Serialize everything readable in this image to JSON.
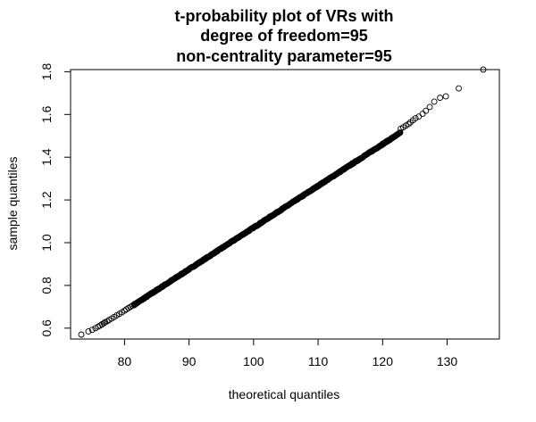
{
  "chart_data": {
    "type": "scatter",
    "title_lines": [
      "t-probability plot of VRs with",
      "degree of freedom=95",
      "non-centrality parameter=95"
    ],
    "xlabel": "theoretical quantiles",
    "ylabel": "sample quantiles",
    "xlim": [
      73.3,
      135.6
    ],
    "ylim": [
      0.57,
      1.81
    ],
    "xticks": [
      80,
      90,
      100,
      110,
      120,
      130
    ],
    "yticks": [
      0.6,
      0.8,
      1.0,
      1.2,
      1.4,
      1.6,
      1.8
    ],
    "ytick_labels": [
      "0.6",
      "0.8",
      "1.0",
      "1.2",
      "1.4",
      "1.6",
      "1.8"
    ],
    "grid": false,
    "marker": "open-circle",
    "series": [
      {
        "x": [
          73.3,
          74.4,
          75.0,
          75.5,
          75.9,
          76.2,
          76.5,
          76.8,
          77.0,
          77.3,
          77.6,
          78.0,
          78.4,
          78.8,
          79.2,
          79.6,
          80.0,
          80.3,
          80.6,
          80.9,
          81.2,
          81.5,
          122.8,
          123.2,
          123.6,
          124.0,
          124.3,
          124.7,
          125.1,
          125.6,
          126.2,
          126.7,
          127.3,
          128.0,
          128.9,
          129.8,
          131.8,
          135.6
        ],
        "y": [
          0.57,
          0.585,
          0.592,
          0.6,
          0.607,
          0.612,
          0.618,
          0.623,
          0.628,
          0.632,
          0.638,
          0.645,
          0.652,
          0.66,
          0.667,
          0.674,
          0.682,
          0.688,
          0.694,
          0.699,
          0.705,
          0.711,
          1.533,
          1.54,
          1.548,
          1.555,
          1.563,
          1.573,
          1.582,
          1.59,
          1.603,
          1.617,
          1.635,
          1.66,
          1.678,
          1.685,
          1.722,
          1.81
        ]
      }
    ]
  }
}
